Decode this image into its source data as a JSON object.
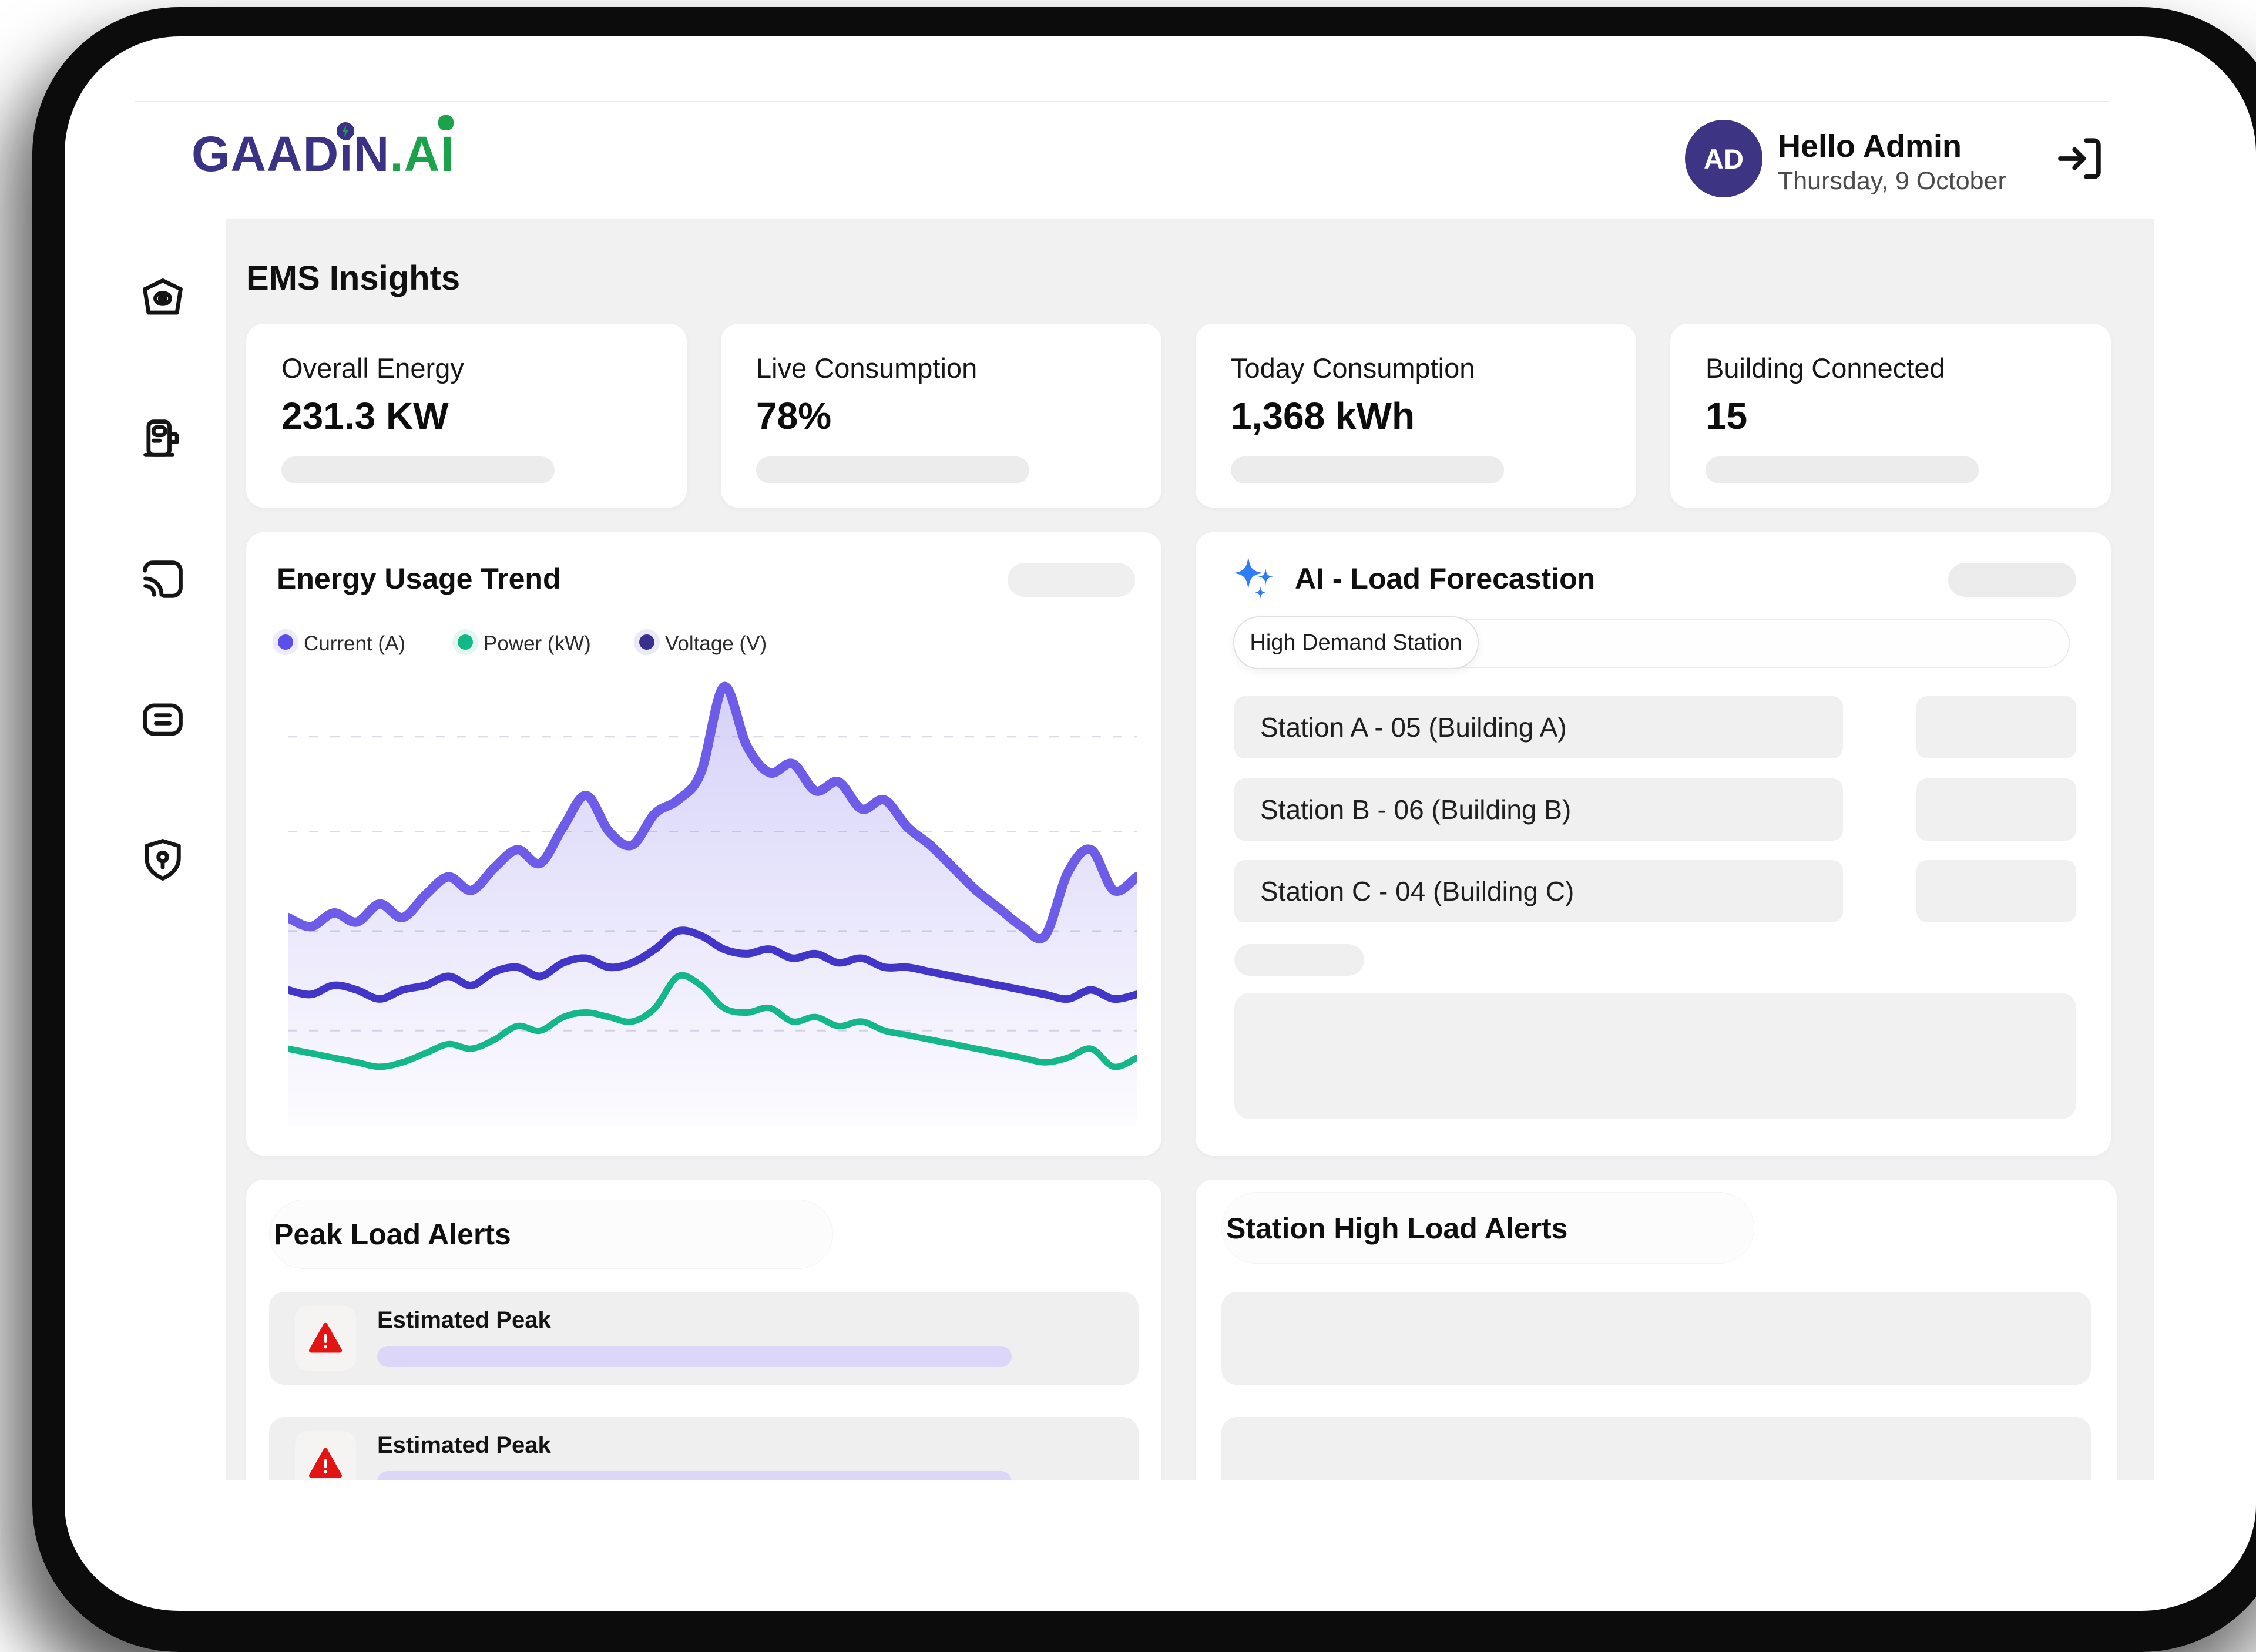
{
  "header": {
    "logo": {
      "text_purple": "GAADiN",
      "text_green": ".AI"
    },
    "greeting": "Hello Admin",
    "date": "Thursday, 9 October",
    "avatar_initials": "AD"
  },
  "sidebar": {
    "items": [
      {
        "icon": "home-icon"
      },
      {
        "icon": "ev-charger-icon"
      },
      {
        "icon": "cast-icon"
      },
      {
        "icon": "card-icon"
      },
      {
        "icon": "shield-key-icon"
      }
    ]
  },
  "page": {
    "title": "EMS Insights"
  },
  "stats": [
    {
      "label": "Overall Energy",
      "value": "231.3 KW"
    },
    {
      "label": "Live Consumption",
      "value": "78%"
    },
    {
      "label": "Today Consumption",
      "value": "1,368 kWh"
    },
    {
      "label": "Building Connected",
      "value": "15"
    }
  ],
  "energy_trend": {
    "title": "Energy Usage Trend",
    "legend": [
      {
        "label": "Current (A)",
        "color": "#5A4FE8",
        "ring": "#ECEAFB"
      },
      {
        "label": "Power (kW)",
        "color": "#12B886",
        "ring": "#E3F6F0"
      },
      {
        "label": "Voltage (V)",
        "color": "#37308F",
        "ring": "#EAE9F4"
      }
    ]
  },
  "chart_data": {
    "type": "area",
    "title": "Energy Usage Trend",
    "note": "No numeric axis ticks or x labels are shown in the UI; values are estimated relative levels (% of plot height) read from the curves.",
    "ylim": [
      0,
      100
    ],
    "y_unit": "relative level (%)",
    "x_labels": "none visible",
    "n_points": 38,
    "grid": {
      "horizontal_dashed_fractions": [
        0.14,
        0.35,
        0.57,
        0.79
      ]
    },
    "legend_position": "top-left",
    "series": [
      {
        "name": "Current (A)",
        "color": "#6C5CE7",
        "fill": true,
        "stroke_width": 16,
        "values": [
          46,
          44,
          47,
          45,
          49,
          46,
          51,
          55,
          52,
          57,
          61,
          58,
          66,
          73,
          65,
          62,
          69,
          72,
          78,
          97,
          84,
          78,
          80,
          74,
          76,
          70,
          72,
          66,
          62,
          57,
          52,
          48,
          44,
          42,
          56,
          61,
          52,
          55
        ]
      },
      {
        "name": "Voltage (V)",
        "color": "#4236C8",
        "fill": false,
        "stroke_width": 13,
        "values": [
          30,
          29,
          31,
          30,
          28,
          30,
          31,
          33,
          31,
          34,
          35,
          33,
          36,
          37,
          35,
          36,
          39,
          43,
          42,
          39,
          38,
          39,
          37,
          38,
          36,
          37,
          35,
          35,
          34,
          33,
          32,
          31,
          30,
          29,
          28,
          30,
          28,
          29
        ]
      },
      {
        "name": "Power (kW)",
        "color": "#14B789",
        "fill": false,
        "stroke_width": 11,
        "values": [
          17,
          16,
          15,
          14,
          13,
          14,
          16,
          18,
          17,
          19,
          22,
          21,
          24,
          25,
          24,
          23,
          26,
          33,
          31,
          26,
          25,
          26,
          23,
          24,
          22,
          23,
          21,
          20,
          19,
          18,
          17,
          16,
          15,
          14,
          15,
          17,
          13,
          15
        ]
      }
    ]
  },
  "ai_panel": {
    "title": "AI - Load Forecastion",
    "filter_chip": "High Demand Station",
    "stations": [
      "Station A - 05 (Building A)",
      "Station B - 06 (Building B)",
      "Station C - 04 (Building C)"
    ]
  },
  "peak_alerts": {
    "title": "Peak Load Alerts",
    "items": [
      {
        "title": "Estimated Peak"
      },
      {
        "title": "Estimated Peak"
      }
    ]
  },
  "station_alerts": {
    "title": "Station High Load Alerts"
  },
  "colors": {
    "logo_purple": "#3A3285",
    "logo_green": "#1CA24A",
    "avatar_bg": "#3D3583",
    "main_bg": "#F1F1F2",
    "alert_red": "#E21414",
    "sparkle_blue": "#2E7CF6",
    "lavender_bar": "#DCD7F8",
    "frame": "#0C0C0C"
  }
}
